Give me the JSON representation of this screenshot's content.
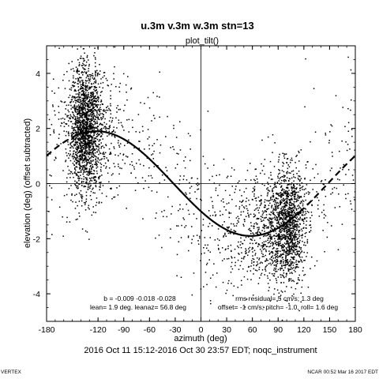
{
  "header": {
    "title": "u.3m v.3m w.3m stn=13",
    "subtitle": "plot_tilt()"
  },
  "footer": {
    "time_range": "2016 Oct 11 15:12-2016 Oct 30 23:57 EDT; noqc_instrument",
    "left_corner": "VERTEX",
    "right_corner": "NCAR 00:52 Mar 16 2017 EDT"
  },
  "annotations": {
    "b_coeffs": "b = -0.009 -0.018 -0.028",
    "lean": "lean= 1.9 deg. leanaz= 56.8 deg",
    "rms_residual": "rms residual= 5 cm/s; 1.3 deg",
    "offset": "offset= -1 cm/s; pitch= -1.0, roll= 1.6 deg"
  },
  "chart_data": {
    "type": "scatter",
    "xlabel": "azimuth (deg)",
    "ylabel": "elevation (deg)  (offset subtracted)",
    "xlim": [
      -180,
      180
    ],
    "ylim": [
      -5,
      5
    ],
    "xticks": [
      -180,
      -120,
      -90,
      -60,
      -30,
      0,
      30,
      60,
      90,
      120,
      150,
      180
    ],
    "yticks": [
      -4,
      -2,
      0,
      2,
      4
    ],
    "reference_lines": {
      "x": 0,
      "y": 0
    },
    "fit_curve": {
      "form": "amplitude * cos(azimuth - leanaz)",
      "amplitude_deg": 1.9,
      "leanaz_deg": -122,
      "solid_range": [
        -150,
        115
      ],
      "dashed_ranges": [
        [
          -180,
          -150
        ],
        [
          115,
          180
        ]
      ]
    },
    "clusters": [
      {
        "x_center": -135,
        "x_spread": 9,
        "y_center": 2.0,
        "y_spread": 1.1,
        "count": 1500
      },
      {
        "x_center": -125,
        "x_spread": 16,
        "y_center": 1.8,
        "y_spread": 1.3,
        "count": 400
      },
      {
        "x_center": 102,
        "x_spread": 10,
        "y_center": -1.5,
        "y_spread": 1.0,
        "count": 1100
      },
      {
        "x_center": 85,
        "x_spread": 14,
        "y_center": -1.6,
        "y_spread": 1.1,
        "count": 350
      },
      {
        "x_center": 50,
        "x_spread": 22,
        "y_center": -1.9,
        "y_spread": 1.0,
        "count": 250
      }
    ],
    "background_point_count": 700
  }
}
